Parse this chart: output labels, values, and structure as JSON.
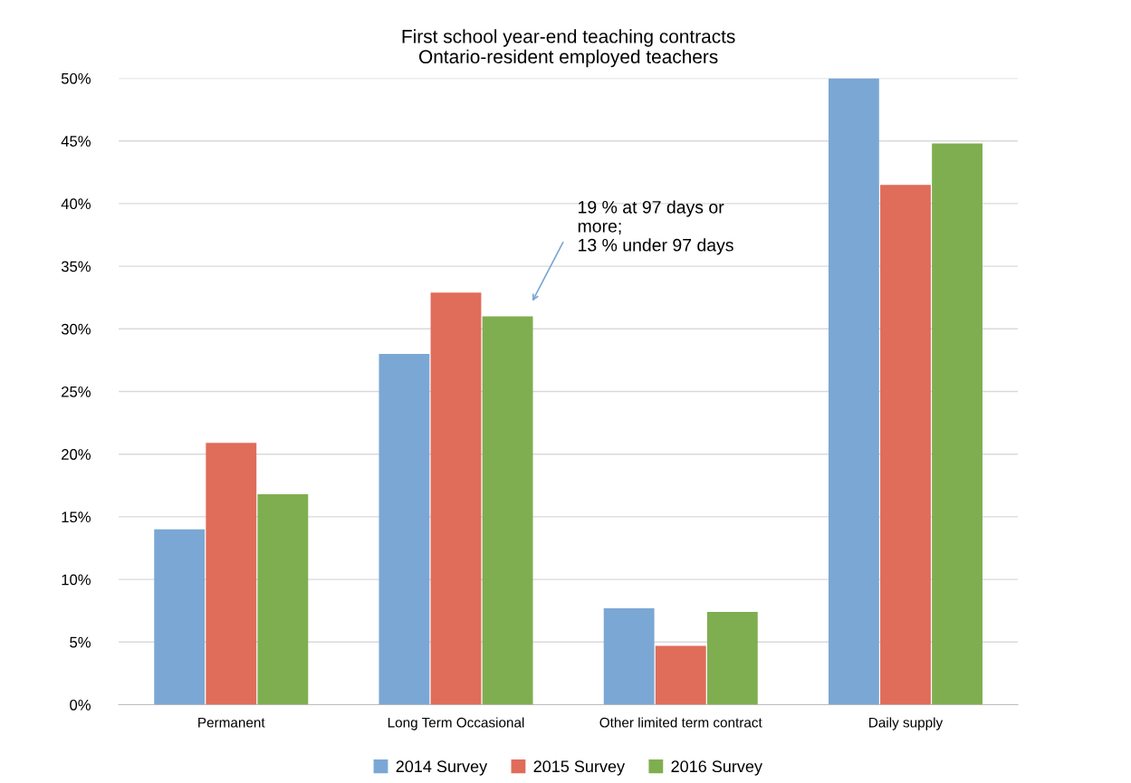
{
  "chart_data": {
    "type": "bar",
    "title": "First school year-end teaching contracts\nOntario-resident employed teachers",
    "categories": [
      "Permanent",
      "Long Term Occasional",
      "Other limited term contract",
      "Daily supply"
    ],
    "series": [
      {
        "name": "2014 Survey",
        "color": "#7ba7d4",
        "values": [
          14.0,
          28.0,
          7.7,
          50.0
        ]
      },
      {
        "name": "2015 Survey",
        "color": "#e06c5a",
        "values": [
          20.9,
          32.9,
          4.7,
          41.5
        ]
      },
      {
        "name": "2016 Survey",
        "color": "#7fae50",
        "values": [
          16.8,
          31.0,
          7.4,
          44.8
        ]
      }
    ],
    "ylim": [
      0,
      50
    ],
    "yticks": [
      {
        "value": 0,
        "label": "0%"
      },
      {
        "value": 5,
        "label": "5%"
      },
      {
        "value": 10,
        "label": "10%"
      },
      {
        "value": 15,
        "label": "15%"
      },
      {
        "value": 20,
        "label": "20%"
      },
      {
        "value": 25,
        "label": "25%"
      },
      {
        "value": 30,
        "label": "30%"
      },
      {
        "value": 35,
        "label": "35%"
      },
      {
        "value": 40,
        "label": "40%"
      },
      {
        "value": 45,
        "label": "45%"
      },
      {
        "value": 50,
        "label": "50%"
      }
    ],
    "grid": "y",
    "legend": "bottom",
    "annotations": [
      "19 % at 97 days or\nmore;\n13 % under 97 days"
    ]
  }
}
